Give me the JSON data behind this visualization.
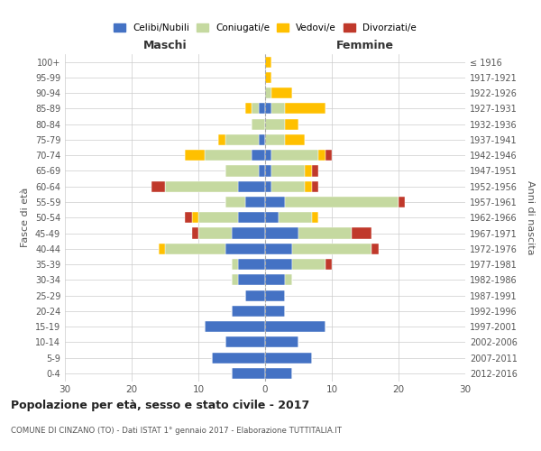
{
  "age_groups": [
    "0-4",
    "5-9",
    "10-14",
    "15-19",
    "20-24",
    "25-29",
    "30-34",
    "35-39",
    "40-44",
    "45-49",
    "50-54",
    "55-59",
    "60-64",
    "65-69",
    "70-74",
    "75-79",
    "80-84",
    "85-89",
    "90-94",
    "95-99",
    "100+"
  ],
  "birth_years": [
    "2012-2016",
    "2007-2011",
    "2002-2006",
    "1997-2001",
    "1992-1996",
    "1987-1991",
    "1982-1986",
    "1977-1981",
    "1972-1976",
    "1967-1971",
    "1962-1966",
    "1957-1961",
    "1952-1956",
    "1947-1951",
    "1942-1946",
    "1937-1941",
    "1932-1936",
    "1927-1931",
    "1922-1926",
    "1917-1921",
    "≤ 1916"
  ],
  "maschi": {
    "celibi": [
      5,
      8,
      6,
      9,
      5,
      3,
      4,
      4,
      6,
      5,
      4,
      3,
      4,
      1,
      2,
      1,
      0,
      1,
      0,
      0,
      0
    ],
    "coniugati": [
      0,
      0,
      0,
      0,
      0,
      0,
      1,
      1,
      9,
      5,
      6,
      3,
      11,
      5,
      7,
      5,
      2,
      1,
      0,
      0,
      0
    ],
    "vedovi": [
      0,
      0,
      0,
      0,
      0,
      0,
      0,
      0,
      1,
      0,
      1,
      0,
      0,
      0,
      3,
      1,
      0,
      1,
      0,
      0,
      0
    ],
    "divorziati": [
      0,
      0,
      0,
      0,
      0,
      0,
      0,
      0,
      0,
      1,
      1,
      0,
      2,
      0,
      0,
      0,
      0,
      0,
      0,
      0,
      0
    ]
  },
  "femmine": {
    "nubili": [
      4,
      7,
      5,
      9,
      3,
      3,
      3,
      4,
      4,
      5,
      2,
      3,
      1,
      1,
      1,
      0,
      0,
      1,
      0,
      0,
      0
    ],
    "coniugate": [
      0,
      0,
      0,
      0,
      0,
      0,
      1,
      5,
      12,
      8,
      5,
      17,
      5,
      5,
      7,
      3,
      3,
      2,
      1,
      0,
      0
    ],
    "vedove": [
      0,
      0,
      0,
      0,
      0,
      0,
      0,
      0,
      0,
      0,
      1,
      0,
      1,
      1,
      1,
      3,
      2,
      6,
      3,
      1,
      1
    ],
    "divorziate": [
      0,
      0,
      0,
      0,
      0,
      0,
      0,
      1,
      1,
      3,
      0,
      1,
      1,
      1,
      1,
      0,
      0,
      0,
      0,
      0,
      0
    ]
  },
  "colors": {
    "celibi": "#4472c4",
    "coniugati": "#c5d9a0",
    "vedovi": "#ffc000",
    "divorziati": "#c0392b"
  },
  "xlim": 30,
  "title": "Popolazione per età, sesso e stato civile - 2017",
  "subtitle": "COMUNE DI CINZANO (TO) - Dati ISTAT 1° gennaio 2017 - Elaborazione TUTTITALIA.IT",
  "xlabel_left": "Maschi",
  "xlabel_right": "Femmine",
  "ylabel_left": "Fasce di età",
  "ylabel_right": "Anni di nascita",
  "legend_labels": [
    "Celibi/Nubili",
    "Coniugati/e",
    "Vedovi/e",
    "Divorziati/e"
  ],
  "bg_color": "#ffffff",
  "grid_color": "#cccccc"
}
